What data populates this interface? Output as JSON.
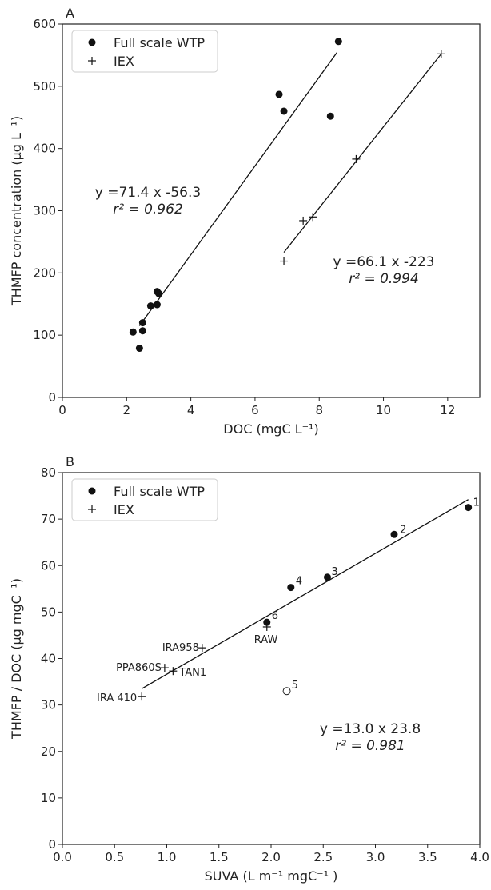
{
  "chart_data": [
    {
      "panel": "A",
      "type": "scatter",
      "xlabel": "DOC (mgC L⁻¹)",
      "ylabel": "THMFP concentration (µg L⁻¹)",
      "xlim": [
        0,
        13
      ],
      "ylim": [
        0,
        600
      ],
      "xticks": [
        "0",
        "2",
        "4",
        "6",
        "8",
        "10",
        "12"
      ],
      "yticks": [
        "0",
        "100",
        "200",
        "300",
        "400",
        "500",
        "600"
      ],
      "legend": {
        "placement": "top-left",
        "entries": [
          "Full scale WTP",
          "IEX"
        ]
      },
      "series": [
        {
          "name": "Full scale WTP",
          "marker": "filled-circle",
          "points": [
            [
              2.2,
              105
            ],
            [
              2.4,
              79
            ],
            [
              2.5,
              120
            ],
            [
              2.5,
              107
            ],
            [
              2.75,
              147
            ],
            [
              2.95,
              149
            ],
            [
              2.95,
              170
            ],
            [
              3.0,
              167
            ],
            [
              6.75,
              487
            ],
            [
              6.9,
              460
            ],
            [
              8.35,
              452
            ],
            [
              8.6,
              572
            ]
          ]
        },
        {
          "name": "IEX",
          "marker": "plus",
          "points": [
            [
              6.9,
              219
            ],
            [
              7.5,
              284
            ],
            [
              7.8,
              290
            ],
            [
              9.15,
              383
            ],
            [
              11.8,
              552
            ]
          ]
        }
      ],
      "fits": [
        {
          "x": [
            2.4,
            8.55
          ],
          "y": [
            115,
            554
          ],
          "equation": "y =71.4 x -56.3",
          "r2_label": "r² = 0.962"
        },
        {
          "x": [
            6.9,
            11.8
          ],
          "y": [
            233,
            552
          ],
          "equation": "y =66.1 x -223",
          "r2_label": "r² = 0.994"
        }
      ]
    },
    {
      "panel": "B",
      "type": "scatter",
      "xlabel": "SUVA (L m⁻¹ mgC⁻¹ )",
      "ylabel": "THMFP / DOC (µg mgC⁻¹)",
      "xlim": [
        0,
        4
      ],
      "ylim": [
        0,
        80
      ],
      "xticks": [
        "0.0",
        "0.5",
        "1.0",
        "1.5",
        "2.0",
        "2.5",
        "3.0",
        "3.5",
        "4.0"
      ],
      "yticks": [
        "0",
        "10",
        "20",
        "30",
        "40",
        "50",
        "60",
        "70",
        "80"
      ],
      "legend": {
        "placement": "top-left",
        "entries": [
          "Full scale WTP",
          "IEX"
        ]
      },
      "series": [
        {
          "name": "Full scale WTP",
          "marker": "filled-circle",
          "points": [
            [
              3.89,
              72.5
            ],
            [
              3.18,
              66.7
            ],
            [
              2.54,
              57.5
            ],
            [
              2.19,
              55.3
            ],
            [
              1.96,
              47.8
            ]
          ],
          "labels": [
            "1",
            "2",
            "3",
            "4",
            "6"
          ]
        },
        {
          "name": "IEX",
          "marker": "plus",
          "points": [
            [
              1.34,
              42.3
            ],
            [
              0.98,
              38.0
            ],
            [
              1.06,
              37.3
            ],
            [
              0.76,
              31.8
            ],
            [
              1.96,
              46.8
            ]
          ],
          "labels": [
            "IRA958",
            "PPA860S",
            "TAN1",
            "IRA 410",
            "RAW"
          ]
        },
        {
          "name": "",
          "marker": "open-circle",
          "points": [
            [
              2.15,
              33.0
            ]
          ],
          "labels": [
            "5"
          ]
        }
      ],
      "fits": [
        {
          "x": [
            0.76,
            3.89
          ],
          "y": [
            33.5,
            74.2
          ],
          "equation": "y =13.0 x 23.8",
          "r2_label": "r² = 0.981"
        }
      ]
    }
  ]
}
